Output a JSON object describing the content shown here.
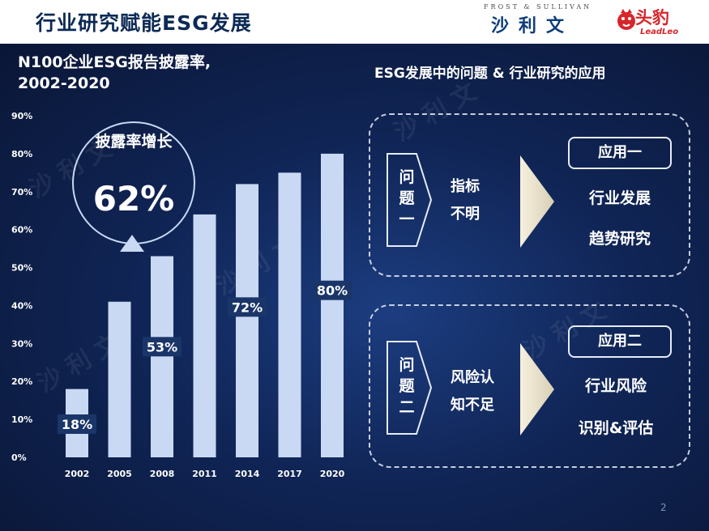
{
  "header": {
    "title": "行业研究赋能ESG发展",
    "frost_top": "FROST & SULLIVAN",
    "frost_cn": "沙利文",
    "leadleo_cn": "头豹",
    "leadleo_en": "LeadLeo"
  },
  "chart": {
    "title_line1": "N100企业ESG报告披露率,",
    "title_line2": "2002-2020",
    "callout_title": "披露率增长",
    "callout_value": "62%"
  },
  "chart_data": {
    "type": "bar",
    "title": "N100企业ESG报告披露率, 2002-2020",
    "categories": [
      "2002",
      "2005",
      "2008",
      "2011",
      "2014",
      "2017",
      "2020"
    ],
    "values": [
      18,
      41,
      53,
      64,
      72,
      75,
      80
    ],
    "data_labels": [
      "18%",
      "",
      "53%",
      "",
      "72%",
      "",
      "80%"
    ],
    "y_ticks": [
      "0%",
      "10%",
      "20%",
      "30%",
      "40%",
      "50%",
      "60%",
      "70%",
      "80%",
      "90%"
    ],
    "ylim": [
      0,
      90
    ],
    "grid": false,
    "bar_color": "#c9d9f3"
  },
  "right": {
    "title": "ESG发展中的问题 & 行业研究的应用",
    "problems": [
      {
        "q_chars": [
          "问",
          "题",
          "一"
        ],
        "mid_lines": [
          "指标",
          "不明"
        ],
        "app_label": "应用一",
        "out_lines": [
          "行业发展",
          "趋势研究"
        ]
      },
      {
        "q_chars": [
          "问",
          "题",
          "二"
        ],
        "mid_lines": [
          "风险认",
          "知不足"
        ],
        "app_label": "应用二",
        "out_lines": [
          "行业风险",
          "识别&评估"
        ]
      }
    ]
  },
  "page_number": "2"
}
